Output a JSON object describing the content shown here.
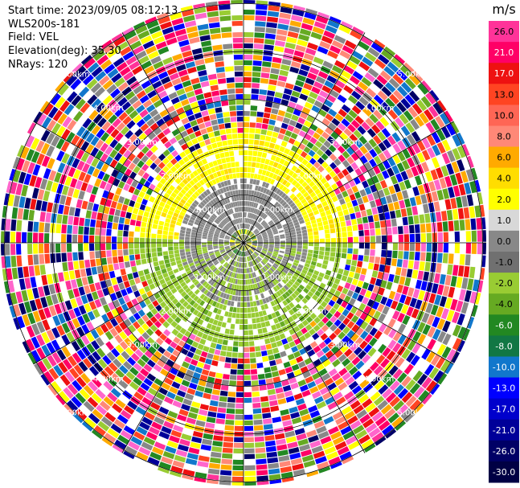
{
  "header": {
    "start_time": "Start time: 2023/09/05 08:12:13",
    "instrument": "WLS200s-181",
    "field": "Field: VEL",
    "elevation": "Elevation(deg): 35.30",
    "nrays": "NRays: 120"
  },
  "colorbar": {
    "unit": "m/s",
    "levels": [
      {
        "label": "26.0",
        "color": "#ff3399"
      },
      {
        "label": "21.0",
        "color": "#ff0066"
      },
      {
        "label": "17.0",
        "color": "#ee1111"
      },
      {
        "label": "13.0",
        "color": "#ff4422"
      },
      {
        "label": "10.0",
        "color": "#ff6655"
      },
      {
        "label": "8.0",
        "color": "#ff8877"
      },
      {
        "label": "6.0",
        "color": "#ffaa00"
      },
      {
        "label": "4.0",
        "color": "#ffdd00"
      },
      {
        "label": "2.0",
        "color": "#ffff00"
      },
      {
        "label": "1.0",
        "color": "#d8d8d8"
      },
      {
        "label": "0.0",
        "color": "#888888"
      },
      {
        "label": "-1.0",
        "color": "#707070"
      },
      {
        "label": "-2.0",
        "color": "#99cc33"
      },
      {
        "label": "-4.0",
        "color": "#66aa22"
      },
      {
        "label": "-6.0",
        "color": "#228822"
      },
      {
        "label": "-8.0",
        "color": "#117744"
      },
      {
        "label": "-10.0",
        "color": "#1177cc"
      },
      {
        "label": "-13.0",
        "color": "#0000ff"
      },
      {
        "label": "-17.0",
        "color": "#0000cc"
      },
      {
        "label": "-21.0",
        "color": "#000099"
      },
      {
        "label": "-26.0",
        "color": "#000066"
      },
      {
        "label": "-30.0",
        "color": "#000044"
      }
    ]
  },
  "chart_data": {
    "type": "heatmap",
    "projection": "polar (PPI)",
    "field": "VEL",
    "unit": "m/s",
    "range_rings": [
      "1.00km",
      "2.00km",
      "3.00km",
      "4.00km",
      "5.00km"
    ],
    "ring_label_text": {
      "r1": "1.00km",
      "r2": "2.00km",
      "r3": "3.00km",
      "r4": "4.00km",
      "r5": "5.00km"
    },
    "spokes_deg_step": 30,
    "sectors": [
      {
        "range_km": [
          0,
          0.3
        ],
        "dominant_velocity": "0.0 to 2.0 (mixed)"
      },
      {
        "range_km": [
          0.3,
          1.5
        ],
        "north_half": "0.0",
        "south_half": "-1.0 to -2.0"
      },
      {
        "range_km": [
          1.5,
          2.3
        ],
        "north_half": "2.0 to 4.0",
        "south_half": "-2.0 to -4.0"
      },
      {
        "range_km": [
          2.3,
          5.3
        ],
        "dominant_velocity": "noise (all levels)"
      }
    ]
  }
}
